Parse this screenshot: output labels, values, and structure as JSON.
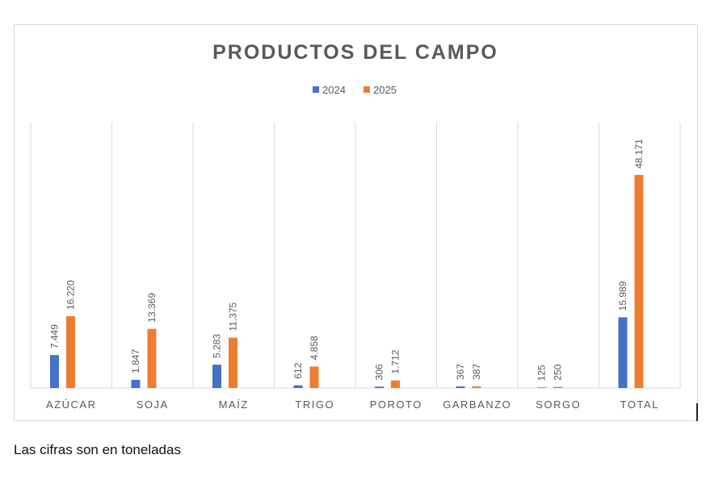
{
  "chart_data": {
    "type": "bar",
    "title": "PRODUCTOS DEL CAMPO",
    "categories": [
      "AZÚCAR",
      "SOJA",
      "MAÍZ",
      "TRIGO",
      "POROTO",
      "GARBANZO",
      "SORGO",
      "TOTAL"
    ],
    "series": [
      {
        "name": "2024",
        "color": "#4472c4",
        "values": [
          7449,
          1847,
          5283,
          612,
          306,
          367,
          125,
          15989
        ],
        "labels": [
          "7.449",
          "1.847",
          "5.283",
          "612",
          "306",
          "367",
          "125",
          "15.989"
        ]
      },
      {
        "name": "2025",
        "color": "#ed7d31",
        "values": [
          16220,
          13369,
          11375,
          4858,
          1712,
          387,
          250,
          48171
        ],
        "labels": [
          "16.220",
          "13.369",
          "11.375",
          "4.858",
          "1.712",
          "387",
          "250",
          "48.171"
        ]
      }
    ],
    "ylim": [
      0,
      60000
    ],
    "legend": "top",
    "grid": "vertical category separators",
    "xlabel": "",
    "ylabel": ""
  },
  "caption": "Las cifras son en toneladas"
}
